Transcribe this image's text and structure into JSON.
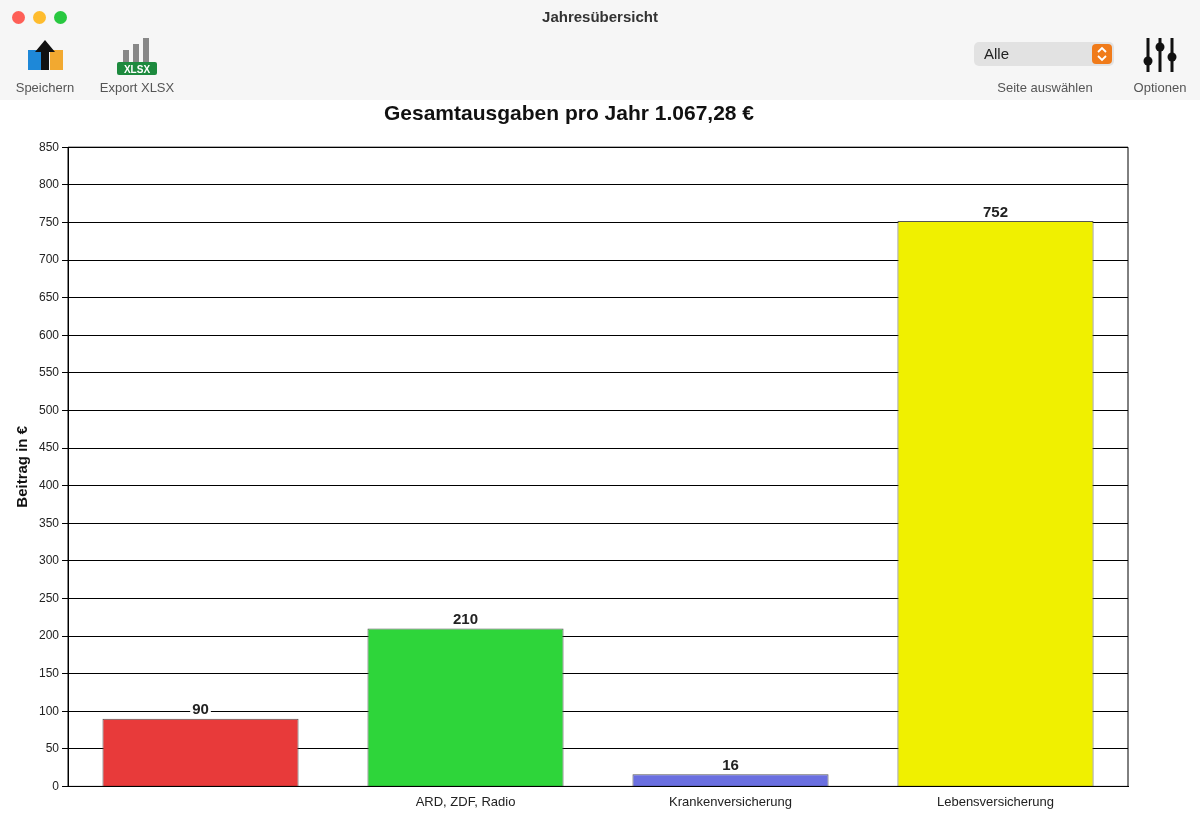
{
  "chart_data": {
    "type": "bar",
    "title": "Gesamtausgaben pro Jahr 1.067,28 €",
    "ylabel": "Beitrag in €",
    "categories": [
      null,
      "ARD, ZDF, Radio",
      "Krankenversicherung",
      "Lebensversicherung"
    ],
    "values": [
      90,
      210,
      16,
      752
    ],
    "colors": [
      "#e83a3a",
      "#2ed53a",
      "#6a6fe0",
      "#f0f000"
    ],
    "ylim": [
      0,
      850
    ],
    "yticks": [
      0,
      50,
      100,
      150,
      200,
      250,
      300,
      350,
      400,
      450,
      500,
      550,
      600,
      650,
      700,
      750,
      800,
      850
    ],
    "grid": "y",
    "legend": false,
    "data_labels": true,
    "annotations": [
      "Jahresübersicht",
      "Speichern",
      "Export XLSX",
      "Alle",
      "Seite auswählen",
      "Optionen",
      "XLSX"
    ]
  }
}
